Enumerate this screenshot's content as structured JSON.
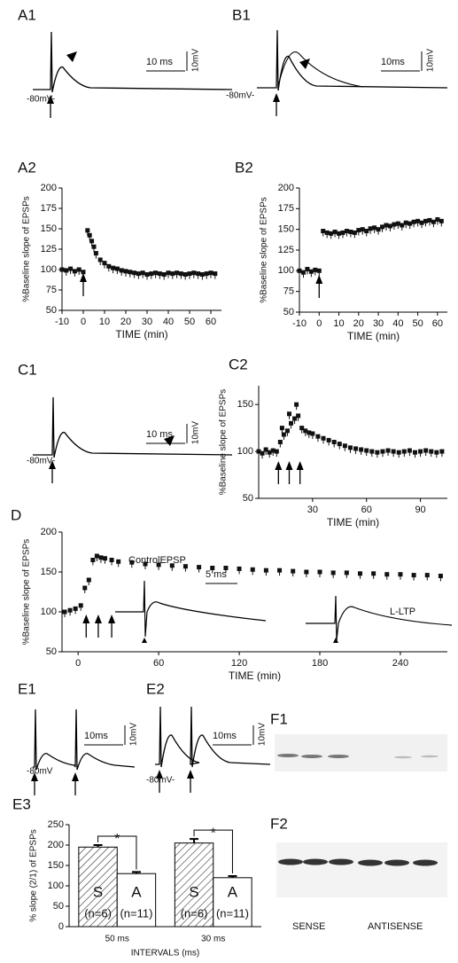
{
  "chart_data": [
    {
      "type": "scatter",
      "label": "A2",
      "ylabel": "%Baseline slope of EPSPs",
      "xlabel": "TIME (min)",
      "color": "#111111",
      "x": [
        -10,
        -8,
        -6,
        -4,
        -2,
        0,
        2,
        3,
        4,
        5,
        6,
        8,
        10,
        12,
        14,
        16,
        18,
        20,
        22,
        24,
        26,
        28,
        30,
        32,
        34,
        36,
        38,
        40,
        42,
        44,
        46,
        48,
        50,
        52,
        54,
        56,
        58,
        60,
        62
      ],
      "values": [
        100,
        99,
        101,
        98,
        100,
        97,
        148,
        142,
        135,
        128,
        120,
        112,
        108,
        104,
        102,
        101,
        99,
        98,
        97,
        96,
        95,
        96,
        94,
        95,
        96,
        95,
        94,
        96,
        95,
        96,
        95,
        94,
        95,
        96,
        95,
        94,
        95,
        96,
        95
      ],
      "xlim": [
        -10,
        65
      ],
      "ylim": [
        50,
        200
      ],
      "xticks": [
        -10,
        0,
        10,
        20,
        30,
        40,
        50,
        60
      ],
      "yticks": [
        50,
        75,
        100,
        125,
        150,
        175,
        200
      ]
    },
    {
      "type": "scatter",
      "label": "B2",
      "ylabel": "%Baseline slope of EPSPs",
      "xlabel": "TIME (min)",
      "color": "#111111",
      "x": [
        -10,
        -8,
        -6,
        -4,
        -2,
        0,
        2,
        4,
        6,
        8,
        10,
        12,
        14,
        16,
        18,
        20,
        22,
        24,
        26,
        28,
        30,
        32,
        34,
        36,
        38,
        40,
        42,
        44,
        46,
        48,
        50,
        52,
        54,
        56,
        58,
        60,
        62
      ],
      "values": [
        100,
        98,
        102,
        99,
        101,
        100,
        148,
        146,
        145,
        147,
        145,
        146,
        148,
        147,
        146,
        149,
        150,
        148,
        151,
        152,
        150,
        153,
        155,
        154,
        156,
        157,
        155,
        158,
        157,
        159,
        160,
        158,
        160,
        161,
        159,
        162,
        160
      ],
      "xlim": [
        -10,
        65
      ],
      "ylim": [
        50,
        200
      ],
      "xticks": [
        -10,
        0,
        10,
        20,
        30,
        40,
        50,
        60
      ],
      "yticks": [
        50,
        75,
        100,
        125,
        150,
        175,
        200
      ]
    },
    {
      "type": "scatter",
      "label": "C2",
      "ylabel": "%Baseline slope of EPSPs",
      "xlabel": "TIME (min)",
      "color": "#111111",
      "x": [
        0,
        2,
        4,
        6,
        8,
        10,
        12,
        13,
        14,
        16,
        17,
        18,
        20,
        21,
        22,
        24,
        26,
        28,
        30,
        33,
        36,
        39,
        42,
        45,
        48,
        51,
        54,
        57,
        60,
        63,
        66,
        69,
        72,
        75,
        78,
        81,
        84,
        87,
        90,
        93,
        96,
        99,
        102
      ],
      "values": [
        100,
        98,
        102,
        99,
        101,
        100,
        110,
        125,
        118,
        122,
        140,
        130,
        135,
        150,
        138,
        125,
        122,
        120,
        119,
        116,
        114,
        112,
        110,
        108,
        106,
        104,
        103,
        102,
        101,
        100,
        99,
        100,
        101,
        100,
        99,
        100,
        101,
        99,
        100,
        101,
        100,
        99,
        100
      ],
      "xlim": [
        0,
        105
      ],
      "ylim": [
        50,
        170
      ],
      "xticks": [
        30,
        60,
        90
      ],
      "yticks": [
        50,
        100,
        150
      ]
    },
    {
      "type": "scatter",
      "label": "D",
      "ylabel": "%Baseline slope of EPSPs",
      "xlabel": "TIME (min)",
      "color": "#111111",
      "annotations": [
        "ControlEPSP",
        "5 ms",
        "L-LTP"
      ],
      "x": [
        -10,
        -6,
        -2,
        2,
        5,
        8,
        11,
        14,
        17,
        20,
        25,
        30,
        40,
        50,
        60,
        70,
        80,
        90,
        100,
        110,
        120,
        130,
        140,
        150,
        160,
        170,
        180,
        190,
        200,
        210,
        220,
        230,
        240,
        250,
        260,
        270
      ],
      "values": [
        100,
        102,
        104,
        108,
        130,
        140,
        165,
        170,
        168,
        167,
        165,
        163,
        162,
        160,
        159,
        158,
        157,
        156,
        155,
        155,
        154,
        153,
        152,
        152,
        151,
        150,
        150,
        149,
        149,
        148,
        148,
        147,
        147,
        146,
        146,
        145
      ],
      "xlim": [
        -12,
        275
      ],
      "ylim": [
        50,
        200
      ],
      "xticks": [
        0,
        60,
        120,
        180,
        240
      ],
      "yticks": [
        50,
        100,
        150,
        200
      ]
    },
    {
      "type": "bar",
      "label": "E3",
      "ylabel": "% slope (2/1) of EPSPs",
      "xlabel": "INTERVALS (ms)",
      "categories": [
        "50 ms",
        "30 ms"
      ],
      "significance": [
        "*",
        "*"
      ],
      "series": [
        {
          "name": "S",
          "n_label": "(n=6)",
          "hatch": true,
          "color": "#ffffff",
          "values": [
            195,
            205
          ],
          "errors": [
            5,
            10
          ]
        },
        {
          "name": "A",
          "n_label": "(n=11)",
          "hatch": false,
          "color": "#ffffff",
          "values": [
            130,
            120
          ],
          "errors": [
            4,
            4
          ]
        }
      ],
      "ylim": [
        0,
        250
      ],
      "yticks": [
        0,
        50,
        100,
        150,
        200,
        250
      ]
    }
  ],
  "traces": [
    {
      "label": "A1",
      "time_scale": "10 ms",
      "voltage_scale": "10mV",
      "potential": "-80mV-"
    },
    {
      "label": "B1",
      "time_scale": "10ms",
      "voltage_scale": "10mV",
      "potential": "-80mV-"
    },
    {
      "label": "C1",
      "time_scale": "10 ms",
      "voltage_scale": "10mV",
      "potential": "-80mV-"
    },
    {
      "label": "E1",
      "time_scale": "10ms",
      "voltage_scale": "10mV",
      "potential": "-80mV"
    },
    {
      "label": "E2",
      "time_scale": "10ms",
      "voltage_scale": "10mV",
      "potential": "-80mV-"
    }
  ],
  "blots": {
    "labels": [
      "F1",
      "F2"
    ],
    "groups": [
      "SENSE",
      "ANTISENSE"
    ]
  }
}
